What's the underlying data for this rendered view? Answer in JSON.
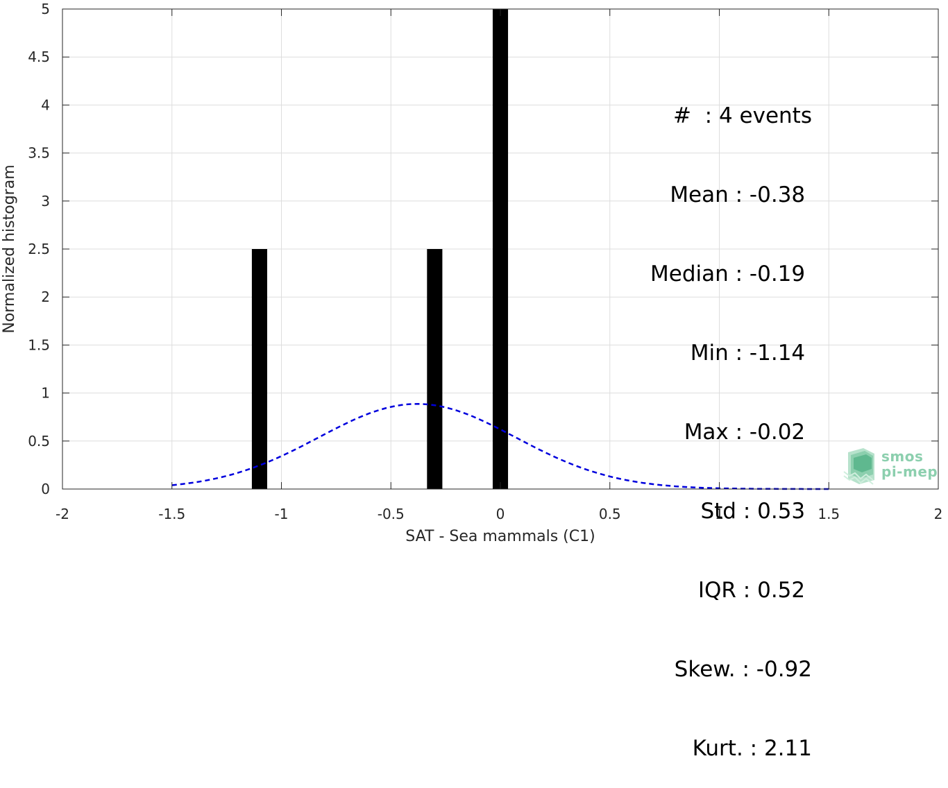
{
  "chart_data": {
    "type": "bar",
    "xlabel": "SAT - Sea mammals (C1)",
    "ylabel": "Normalized histogram",
    "xlim": [
      -2,
      2
    ],
    "ylim": [
      0,
      5
    ],
    "grid": true,
    "x_ticks": [
      "-2",
      "-1.5",
      "-1",
      "-0.5",
      "0",
      "0.5",
      "1",
      "1.5",
      "2"
    ],
    "y_ticks": [
      "0",
      "0.5",
      "1",
      "1.5",
      "2",
      "2.5",
      "3",
      "3.5",
      "4",
      "4.5",
      "5"
    ],
    "bar_width": 0.07,
    "bars": [
      {
        "x": -1.1,
        "value": 2.5
      },
      {
        "x": -0.3,
        "value": 2.5
      },
      {
        "x": 0.0,
        "value": 5.0
      }
    ],
    "fit_curve": {
      "style": "dashed",
      "color": "#0000dd",
      "distribution": "normal",
      "mean": -0.38,
      "std": 0.45,
      "scale": 1.0,
      "x_range": [
        -1.5,
        1.5
      ]
    },
    "colors": {
      "bar": "#000000",
      "grid": "#dddddd",
      "axis": "#262626"
    }
  },
  "stats": [
    "#  : 4 events",
    "Mean : -0.38 ",
    "Median : -0.19 ",
    "Min : -1.14 ",
    "Max : -0.02 ",
    "Std : 0.53 ",
    "IQR : 0.52 ",
    "Skew. : -0.92",
    "Kurt. : 2.11"
  ],
  "logo": {
    "line1": "smos",
    "line2": "pi-mep",
    "color": "#8ccfae"
  }
}
